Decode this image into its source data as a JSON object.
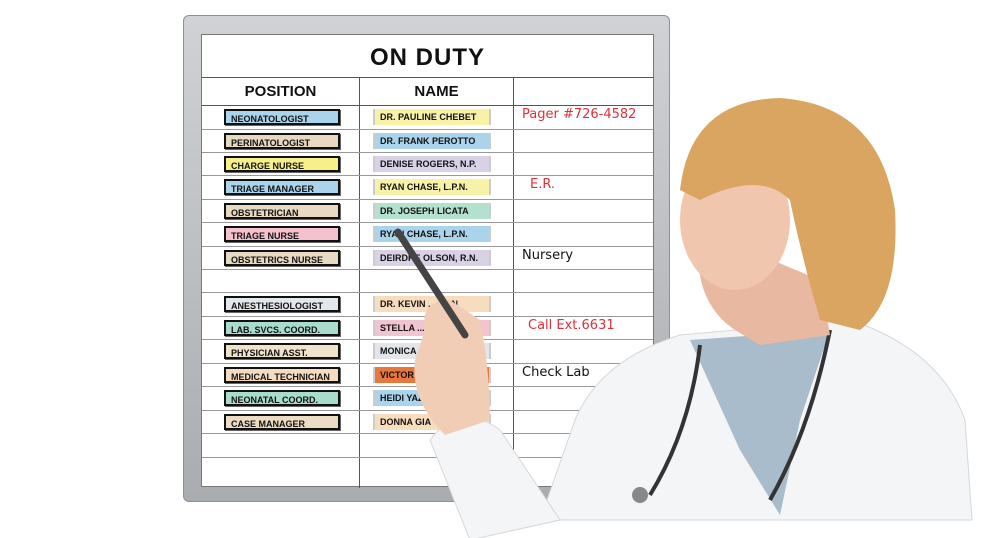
{
  "board": {
    "title": "ON DUTY",
    "headers": [
      "POSITION",
      "NAME",
      ""
    ],
    "rows": [
      {
        "position": "NEONATOLOGIST",
        "pos_color": "#a9d4ec",
        "name": "DR. PAULINE CHEBET",
        "name_color": "#f8f2a8",
        "note": "Pager #726-4582",
        "note_color": "#e0303a"
      },
      {
        "position": "PERINATOLOGIST",
        "pos_color": "#e8d9c3",
        "name": "DR. FRANK PEROTTO",
        "name_color": "#a9d4ec",
        "note": "",
        "note_color": ""
      },
      {
        "position": "CHARGE NURSE",
        "pos_color": "#f7ef8a",
        "name": "DENISE ROGERS, N.P.",
        "name_color": "#d9d2e6",
        "note": "",
        "note_color": ""
      },
      {
        "position": "TRIAGE MANAGER",
        "pos_color": "#a9d4ec",
        "name": "RYAN CHASE, L.P.N.",
        "name_color": "#f8f2a8",
        "note": "E.R.",
        "note_color": "#e0303a"
      },
      {
        "position": "OBSTETRICIAN",
        "pos_color": "#e8d9c3",
        "name": "DR. JOSEPH LICATA",
        "name_color": "#b3e0cf",
        "note": "",
        "note_color": ""
      },
      {
        "position": "TRIAGE NURSE",
        "pos_color": "#f4c1cc",
        "name": "RYAN CHASE, L.P.N.",
        "name_color": "#a9d4ec",
        "note": "",
        "note_color": ""
      },
      {
        "position": "OBSTETRICS NURSE",
        "pos_color": "#e8d9c3",
        "name": "DEIRDRE OLSON, R.N.",
        "name_color": "#d9d2e6",
        "note": "Nursery",
        "note_color": "#111111"
      },
      null,
      {
        "position": "ANESTHESIOLOGIST",
        "pos_color": "#e3e6ea",
        "name": "DR. KEVIN ... RON",
        "name_color": "#f7dcbe",
        "note": "",
        "note_color": ""
      },
      {
        "position": "LAB. SVCS. COORD.",
        "pos_color": "#a9dccd",
        "name": "STELLA ... P.",
        "name_color": "#f2c3d1",
        "note": "Call Ext.6631",
        "note_color": "#e0303a"
      },
      {
        "position": "PHYSICIAN ASST.",
        "pos_color": "#f1e2cc",
        "name": "MONICA",
        "name_color": "#e2e5ea",
        "note": "",
        "note_color": ""
      },
      {
        "position": "MEDICAL TECHNICIAN",
        "pos_color": "#f5dcc0",
        "name": "VICTOR",
        "name_color": "#e7773c",
        "note": "Check Lab",
        "note_color": "#111111"
      },
      {
        "position": "NEONATAL COORD.",
        "pos_color": "#a9dccd",
        "name": "HEIDI YAZBA",
        "name_color": "#a9d4ec",
        "note": "",
        "note_color": ""
      },
      {
        "position": "CASE MANAGER",
        "pos_color": "#ecdcc4",
        "name": "DONNA GIA",
        "name_color": "#f7dcbe",
        "note": "",
        "note_color": ""
      },
      null,
      null
    ]
  }
}
